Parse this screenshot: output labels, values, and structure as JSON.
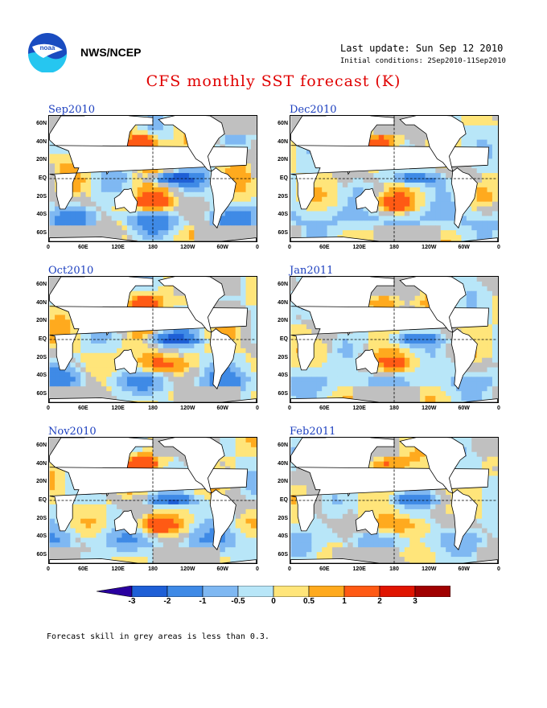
{
  "header": {
    "agency": "NWS/NCEP",
    "logo_text": "noaa",
    "last_update": "Last update: Sun Sep 12 2010",
    "initial_conditions": "Initial conditions: 2Sep2010-11Sep2010",
    "title": "CFS monthly SST forecast (K)"
  },
  "axes": {
    "lat_labels": [
      "60N",
      "40N",
      "20N",
      "EQ",
      "20S",
      "40S",
      "60S"
    ],
    "lon_labels": [
      "0",
      "60E",
      "120E",
      "180",
      "120W",
      "60W",
      "0"
    ]
  },
  "panels": [
    {
      "title": "Sep2010",
      "intensity": 1.0
    },
    {
      "title": "Oct2010",
      "intensity": 0.9
    },
    {
      "title": "Nov2010",
      "intensity": 0.8
    },
    {
      "title": "Dec2010",
      "intensity": 0.7
    },
    {
      "title": "Jan2011",
      "intensity": 0.65
    },
    {
      "title": "Feb2011",
      "intensity": 0.6
    }
  ],
  "colorbar": {
    "labels": [
      "-3",
      "-2",
      "-1",
      "-0.5",
      "0",
      "0.5",
      "1",
      "2",
      "3"
    ],
    "colors": [
      "#2a00a0",
      "#1e5fd6",
      "#3f8ae6",
      "#7fb8f2",
      "#b8e6f8",
      "#ffe57a",
      "#ffaa1e",
      "#ff5a14",
      "#e01400",
      "#a00000",
      "#6a3a2a"
    ]
  },
  "footnote": "Forecast skill in grey areas is less than 0.3."
}
